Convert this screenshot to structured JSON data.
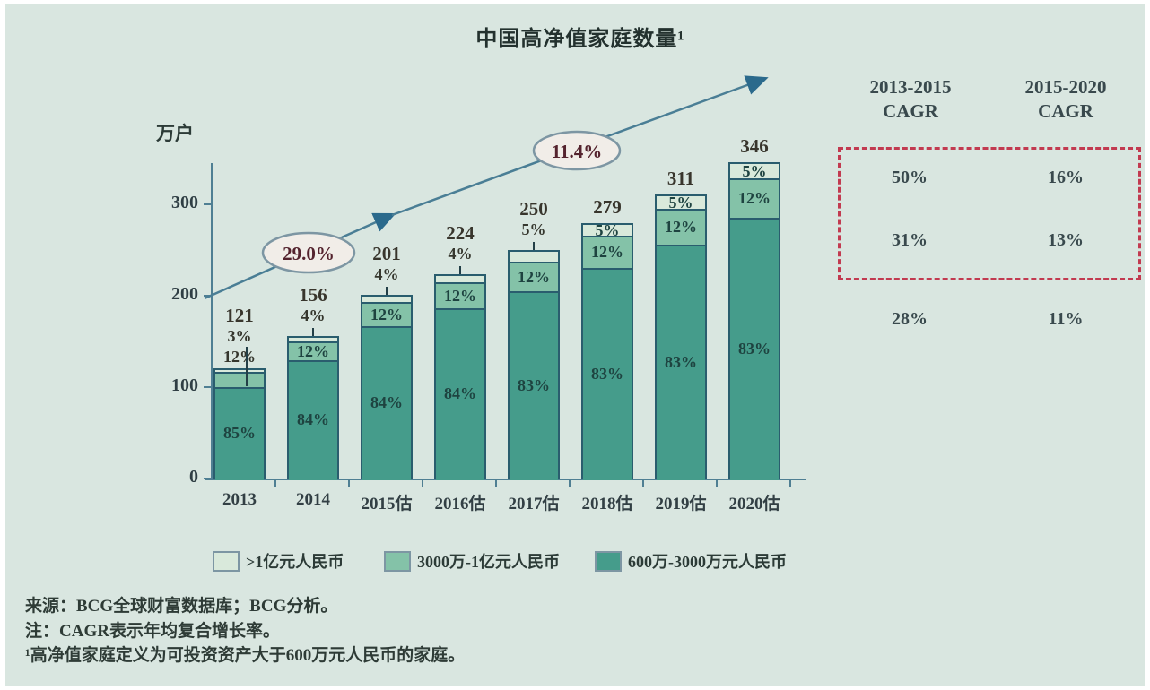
{
  "title": "中国高净值家庭数量¹",
  "chart_data": {
    "type": "bar",
    "stacked": true,
    "title": "中国高净值家庭数量¹",
    "unit_label": "万户",
    "ylim": [
      0,
      345
    ],
    "yticks": [
      0,
      100,
      200,
      300
    ],
    "grid": false,
    "legend_position": "bottom",
    "categories": [
      "2013",
      "2014",
      "2015估",
      "2016估",
      "2017估",
      "2018估",
      "2019估",
      "2020估"
    ],
    "totals": [
      121,
      156,
      201,
      224,
      250,
      279,
      311,
      346
    ],
    "series": [
      {
        "name": "600万-3000万元人民币",
        "color": "#459c8b",
        "pct": [
          85,
          84,
          84,
          84,
          83,
          83,
          83,
          83
        ]
      },
      {
        "name": "3000万-1亿元人民币",
        "color": "#84c2a8",
        "pct": [
          12,
          12,
          12,
          12,
          12,
          12,
          12,
          12
        ]
      },
      {
        "name": ">1亿元人民币",
        "color": "#d9e9db",
        "pct": [
          3,
          4,
          4,
          4,
          5,
          5,
          5,
          5
        ]
      }
    ],
    "growth_annotations": [
      {
        "label": "29.0%"
      },
      {
        "label": "11.4%"
      }
    ]
  },
  "legend": {
    "items": [
      {
        "label": ">1亿元人民币",
        "color": "#d9e9db"
      },
      {
        "label": "3000万-1亿元人民币",
        "color": "#84c2a8"
      },
      {
        "label": "600万-3000万元人民币",
        "color": "#459c8b"
      }
    ]
  },
  "cagr_table": {
    "headers": [
      {
        "line1": "2013-2015",
        "line2": "CAGR"
      },
      {
        "line1": "2015-2020",
        "line2": "CAGR"
      }
    ],
    "rows": [
      {
        "values": [
          "50%",
          "16%"
        ],
        "highlighted": true
      },
      {
        "values": [
          "31%",
          "13%"
        ],
        "highlighted": true
      },
      {
        "values": [
          "28%",
          "11%"
        ],
        "highlighted": false
      }
    ],
    "highlight_color": "#c23a50"
  },
  "footnotes": [
    "来源：BCG全球财富数据库；BCG分析。",
    "注：CAGR表示年均复合增长率。",
    "¹高净值家庭定义为可投资资产大于600万元人民币的家庭。"
  ],
  "colors": {
    "background": "#d9e6e0",
    "axis": "#4f7f93",
    "arrow": "#4a7e95",
    "annotation_text": "#54232e",
    "highlight_red": "#c23a50"
  }
}
